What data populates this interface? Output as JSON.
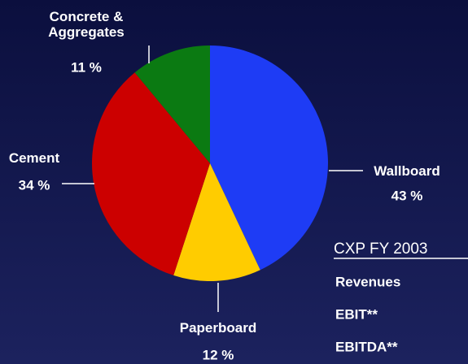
{
  "chart_data": {
    "type": "pie",
    "categories": [
      "Wallboard",
      "Paperboard",
      "Cement",
      "Concrete &\nAggregates"
    ],
    "values": [
      43,
      12,
      34,
      11
    ],
    "value_labels": [
      "43 %",
      "12 %",
      "34 %",
      "11 %"
    ],
    "colors": [
      "#1e3cf5",
      "#ffcc00",
      "#cc0000",
      "#0b7a12"
    ]
  },
  "side_panel": {
    "heading": "CXP FY 2003",
    "rows": [
      "Revenues",
      "EBIT**",
      "EBITDA**"
    ]
  }
}
